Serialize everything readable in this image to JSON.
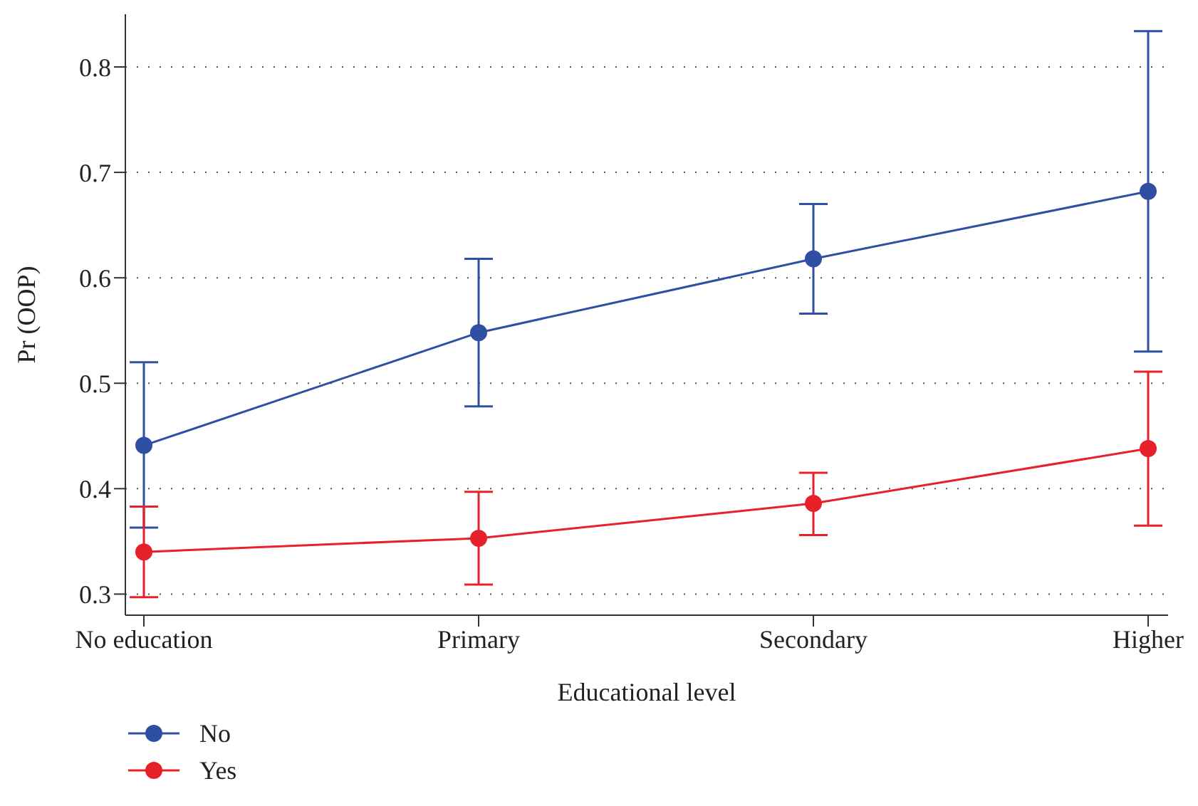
{
  "chart_data": {
    "type": "line",
    "xlabel": "Educational level",
    "ylabel": "Pr (OOP)",
    "categories": [
      "No education",
      "Primary",
      "Secondary",
      "Higher"
    ],
    "series": [
      {
        "name": "No",
        "color": "#2f4fa3",
        "values": [
          0.441,
          0.548,
          0.618,
          0.682
        ],
        "errors": [
          [
            0.363,
            0.52
          ],
          [
            0.478,
            0.618
          ],
          [
            0.566,
            0.67
          ],
          [
            0.53,
            0.834
          ]
        ]
      },
      {
        "name": "Yes",
        "color": "#e8202a",
        "values": [
          0.34,
          0.353,
          0.386,
          0.438
        ],
        "errors": [
          [
            0.297,
            0.383
          ],
          [
            0.309,
            0.397
          ],
          [
            0.356,
            0.415
          ],
          [
            0.365,
            0.511
          ]
        ]
      }
    ],
    "ylim": [
      0.28,
      0.85
    ],
    "yticks": [
      0.3,
      0.4,
      0.5,
      0.6,
      0.7,
      0.8
    ],
    "grid": "y",
    "legend": "bottom left",
    "marker": "circle",
    "line_style": "solid"
  }
}
